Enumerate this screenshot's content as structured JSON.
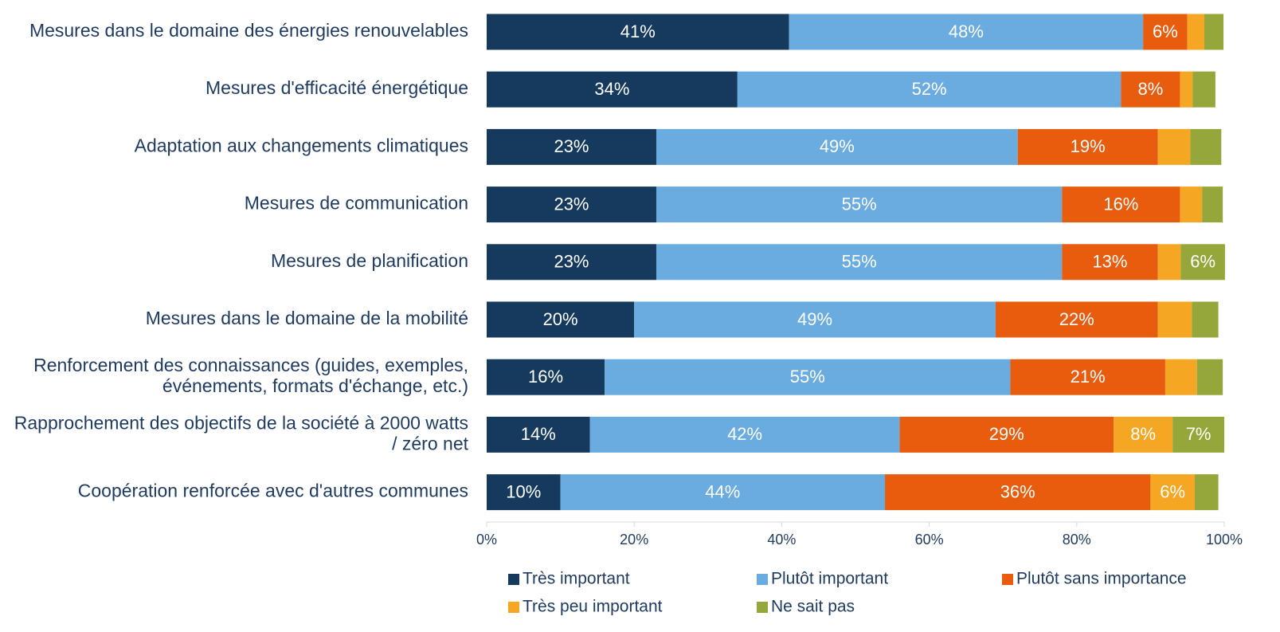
{
  "chart_data": {
    "type": "stacked_bar_horizontal",
    "categories": [
      "Mesures dans le domaine des énergies renouvelables",
      "Mesures d'efficacité énergétique",
      "Adaptation aux changements climatiques",
      "Mesures de communication",
      "Mesures de planification",
      "Mesures dans le domaine de la mobilité",
      "Renforcement des connaissances (guides, exemples, événements, formats d'échange, etc.)",
      "Rapprochement des objectifs de la société à 2000 watts / zéro net",
      "Coopération renforcée avec d'autres communes"
    ],
    "series": [
      {
        "name": "Très important",
        "color": "#153a5e",
        "values": [
          41,
          34,
          23,
          23,
          23,
          20,
          16,
          14,
          10
        ],
        "value_labels": [
          "41%",
          "34%",
          "23%",
          "23%",
          "23%",
          "20%",
          "16%",
          "14%",
          "10%"
        ]
      },
      {
        "name": "Plutôt important",
        "color": "#6aace0",
        "values": [
          48,
          52,
          49,
          55,
          55,
          49,
          55,
          42,
          44
        ],
        "value_labels": [
          "48%",
          "52%",
          "49%",
          "55%",
          "55%",
          "49%",
          "55%",
          "42%",
          "44%"
        ]
      },
      {
        "name": "Plutôt sans importance",
        "color": "#e85c0d",
        "values": [
          6,
          8,
          19,
          16,
          13,
          22,
          21,
          29,
          36
        ],
        "value_labels": [
          "6%",
          "8%",
          "19%",
          "16%",
          "13%",
          "22%",
          "21%",
          "29%",
          "36%"
        ]
      },
      {
        "name": "Très peu important",
        "color": "#f5a623",
        "values": [
          2.3,
          1.7,
          4.4,
          3.0,
          3.1,
          4.6,
          4.3,
          8,
          6
        ],
        "value_labels": [
          null,
          null,
          null,
          null,
          null,
          null,
          null,
          "8%",
          "6%"
        ]
      },
      {
        "name": "Ne sait pas",
        "color": "#95a73b",
        "values": [
          2.6,
          3.1,
          4.2,
          2.8,
          6,
          3.6,
          3.5,
          7,
          3.2
        ],
        "value_labels": [
          null,
          null,
          null,
          null,
          "6%",
          null,
          null,
          "7%",
          null
        ]
      }
    ],
    "xlim": [
      0,
      100
    ],
    "xticks": [
      {
        "value": 0,
        "label": "0%"
      },
      {
        "value": 20,
        "label": "20%"
      },
      {
        "value": 40,
        "label": "40%"
      },
      {
        "value": 60,
        "label": "60%"
      },
      {
        "value": 80,
        "label": "80%"
      },
      {
        "value": 100,
        "label": "100%"
      }
    ]
  }
}
